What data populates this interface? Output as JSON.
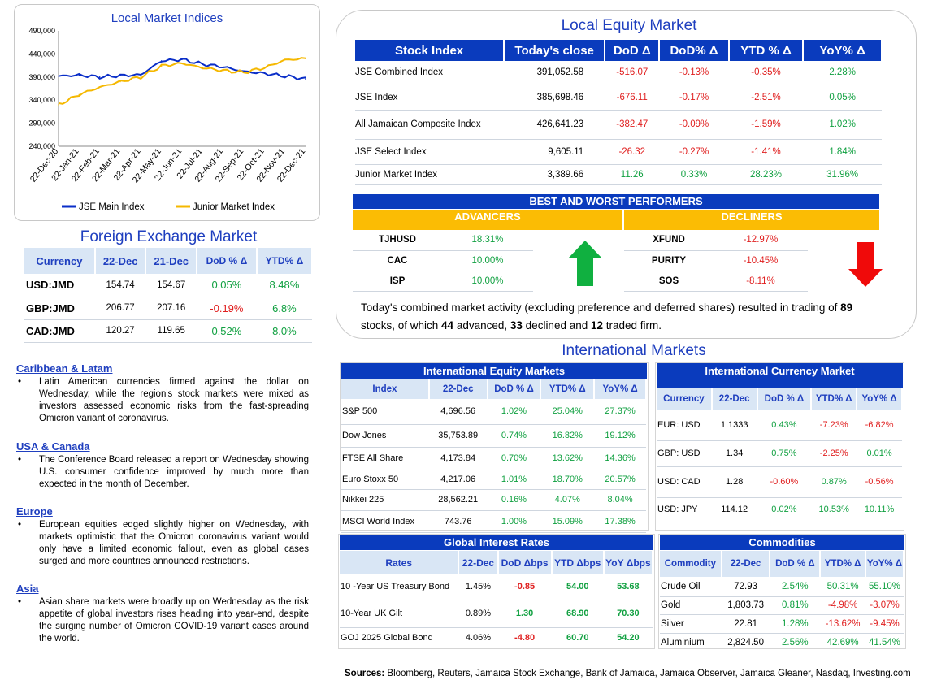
{
  "chart": {
    "title": "Local Market Indices",
    "y_ticks": [
      "490,000",
      "440,000",
      "390,000",
      "340,000",
      "290,000",
      "240,000"
    ],
    "x_ticks": [
      "22-Dec-20",
      "22-Jan-21",
      "22-Feb-21",
      "22-Mar-21",
      "22-Apr-21",
      "22-May-21",
      "22-Jun-21",
      "22-Jul-21",
      "22-Aug-21",
      "22-Sep-21",
      "22-Oct-21",
      "22-Nov-21",
      "22-Dec-21"
    ],
    "legend": [
      "JSE Main Index",
      "Junior Market Index"
    ]
  },
  "chart_data": {
    "type": "line",
    "title": "Local Market Indices",
    "x": [
      "22-Dec-20",
      "22-Jan-21",
      "22-Feb-21",
      "22-Mar-21",
      "22-Apr-21",
      "22-May-21",
      "22-Jun-21",
      "22-Jul-21",
      "22-Aug-21",
      "22-Sep-21",
      "22-Oct-21",
      "22-Nov-21",
      "22-Dec-21"
    ],
    "ylim": [
      240000,
      490000
    ],
    "series": [
      {
        "name": "JSE Main Index",
        "color": "#0a2ec8",
        "values": [
          392000,
          394000,
          390000,
          393000,
          395000,
          425000,
          428000,
          418000,
          412000,
          402000,
          398000,
          392000,
          386000
        ]
      },
      {
        "name": "Junior Market Index",
        "color": "#f5b800",
        "values": [
          330000,
          352000,
          368000,
          380000,
          390000,
          414000,
          420000,
          410000,
          404000,
          400000,
          410000,
          427000,
          430000
        ]
      }
    ]
  },
  "fx": {
    "title": "Foreign Exchange Market",
    "headers": [
      "Currency",
      "22-Dec",
      "21-Dec",
      "DoD % Δ",
      "YTD% Δ"
    ],
    "rows": [
      [
        "USD:JMD",
        "154.74",
        "154.67",
        "0.05%",
        "8.48%"
      ],
      [
        "GBP:JMD",
        "206.77",
        "207.16",
        "-0.19%",
        "6.8%"
      ],
      [
        "CAD:JMD",
        "120.27",
        "119.65",
        "0.52%",
        "8.0%"
      ]
    ]
  },
  "news": [
    {
      "heading": "Caribbean & Latam",
      "text": "Latin American currencies firmed against the dollar on Wednesday, while the region's stock markets were mixed as investors assessed economic risks from the fast-spreading Omicron variant of coronavirus."
    },
    {
      "heading": "USA & Canada",
      "text": "The Conference Board released a report on Wednesday showing U.S. consumer confidence improved by much more than expected in the month of December."
    },
    {
      "heading": "Europe",
      "text": "European equities edged slightly higher on Wednesday, with markets optimistic that the Omicron coronavirus variant would only have a limited economic fallout, even as global cases surged and more countries announced restrictions."
    },
    {
      "heading": "Asia",
      "text": "Asian share markets were broadly up on Wednesday as the risk appetite of global investors rises heading into year-end, despite the surging number of Omicron COVID-19 variant cases around the world."
    }
  ],
  "local_equity": {
    "title": "Local Equity Market",
    "headers": [
      "Stock Index",
      "Today's close",
      "DoD  Δ",
      "DoD% Δ",
      "YTD % Δ",
      "YoY% Δ"
    ],
    "rows": [
      [
        "JSE Combined Index",
        "391,052.58",
        "-516.07",
        "-0.13%",
        "-0.35%",
        "2.28%"
      ],
      [
        "JSE Index",
        "385,698.46",
        "-676.11",
        "-0.17%",
        "-2.51%",
        "0.05%"
      ],
      [
        "All Jamaican Composite Index",
        "426,641.23",
        "-382.47",
        "-0.09%",
        "-1.59%",
        "1.02%"
      ],
      [
        "JSE Select Index",
        "9,605.11",
        "-26.32",
        "-0.27%",
        "-1.41%",
        "1.84%"
      ],
      [
        "Junior Market Index",
        "3,389.66",
        "11.26",
        "0.33%",
        "28.23%",
        "31.96%"
      ]
    ]
  },
  "performers": {
    "title": "BEST AND WORST PERFORMERS",
    "advancers_label": "ADVANCERS",
    "decliners_label": "DECLINERS",
    "advancers": [
      [
        "TJHUSD",
        "18.31%"
      ],
      [
        "CAC",
        "10.00%"
      ],
      [
        "ISP",
        "10.00%"
      ]
    ],
    "decliners": [
      [
        "XFUND",
        "-12.97%"
      ],
      [
        "PURITY",
        "-10.45%"
      ],
      [
        "SOS",
        "-8.11%"
      ]
    ]
  },
  "summary": {
    "t1": "Today's combined market activity (excluding preference and deferred shares) resulted in trading of ",
    "n1": "89",
    "t2": " stocks, of which ",
    "n2": "44",
    "t3": " advanced, ",
    "n3": "33",
    "t4": " declined and ",
    "n4": "12",
    "t5": " traded firm."
  },
  "intl_title": "International Markets",
  "intl_equity": {
    "title": "International Equity Markets",
    "headers": [
      "Index",
      "22-Dec",
      "DoD % Δ",
      "YTD% Δ",
      "YoY% Δ"
    ],
    "rows": [
      [
        "S&P 500",
        "4,696.56",
        "1.02%",
        "25.04%",
        "27.37%"
      ],
      [
        "Dow Jones",
        "35,753.89",
        "0.74%",
        "16.82%",
        "19.12%"
      ],
      [
        "FTSE All Share",
        "4,173.84",
        "0.70%",
        "13.62%",
        "14.36%"
      ],
      [
        "Euro Stoxx 50",
        "4,217.06",
        "1.01%",
        "18.70%",
        "20.57%"
      ],
      [
        "Nikkei 225",
        "28,562.21",
        "0.16%",
        "4.07%",
        "8.04%"
      ],
      [
        "MSCI World Index",
        "743.76",
        "1.00%",
        "15.09%",
        "17.38%"
      ]
    ]
  },
  "intl_currency": {
    "title": "International Currency Market",
    "headers": [
      "Currency",
      "22-Dec",
      "DoD % Δ",
      "YTD% Δ",
      "YoY% Δ"
    ],
    "rows": [
      [
        "EUR: USD",
        "1.1333",
        "0.43%",
        "-7.23%",
        "-6.82%"
      ],
      [
        "GBP: USD",
        "1.34",
        "0.75%",
        "-2.25%",
        "0.01%"
      ],
      [
        "USD: CAD",
        "1.28",
        "-0.60%",
        "0.87%",
        "-0.56%"
      ],
      [
        "USD: JPY",
        "114.12",
        "0.02%",
        "10.53%",
        "10.11%"
      ]
    ]
  },
  "rates": {
    "title": "Global Interest Rates",
    "headers": [
      "Rates",
      "22-Dec",
      "DoD Δbps",
      "YTD Δbps",
      "YoY Δbps"
    ],
    "rows": [
      [
        "10 -Year US Treasury Bond",
        "1.45%",
        "-0.85",
        "54.00",
        "53.68"
      ],
      [
        "10-Year UK Gilt",
        "0.89%",
        "1.30",
        "68.90",
        "70.30"
      ],
      [
        "GOJ 2025 Global Bond",
        "4.06%",
        "-4.80",
        "60.70",
        "54.20"
      ]
    ]
  },
  "commodities": {
    "title": "Commodities",
    "headers": [
      "Commodity",
      "22-Dec",
      "DoD % Δ",
      "YTD% Δ",
      "YoY% Δ"
    ],
    "rows": [
      [
        "Crude Oil",
        "72.93",
        "2.54%",
        "50.31%",
        "55.10%"
      ],
      [
        "Gold",
        "1,803.73",
        "0.81%",
        "-4.98%",
        "-3.07%"
      ],
      [
        "Silver",
        "22.81",
        "1.28%",
        "-13.62%",
        "-9.45%"
      ],
      [
        "Aluminium",
        "2,824.50",
        "2.56%",
        "42.69%",
        "41.54%"
      ]
    ]
  },
  "sources": {
    "label": "Sources:",
    "text": " Bloomberg, Reuters, Jamaica Stock Exchange, Bank of Jamaica, Jamaica Observer, Jamaica Gleaner, Nasdaq, Investing.com"
  },
  "colors": {
    "header_blue": "#0a3bbd",
    "light_header": "#d9e6f5",
    "accent_yellow": "#fbbc04",
    "up_green": "#10a040",
    "down_red": "#e02020"
  },
  "icons": {
    "advancers": "up-arrow-icon",
    "decliners": "down-arrow-icon"
  }
}
